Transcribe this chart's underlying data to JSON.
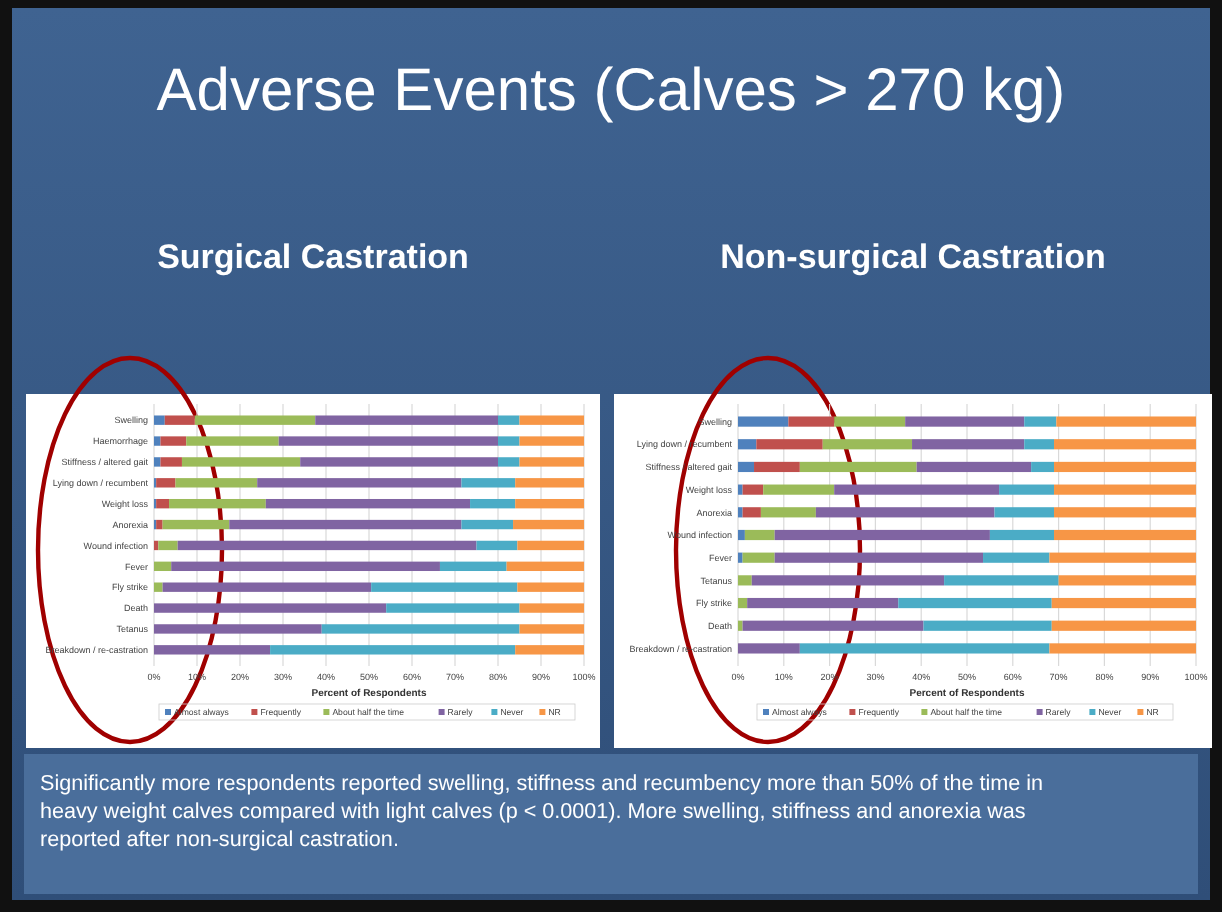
{
  "chart_data": [
    {
      "type": "bar",
      "title": "Adverse Events (Calves > 270 kg)",
      "subtitle": "Surgical Castration",
      "orientation": "horizontal",
      "stacked": true,
      "xlabel": "Percent of Respondents",
      "categories": [
        "Swelling",
        "Haemorrhage",
        "Stiffness / altered gait",
        "Lying down / recumbent",
        "Weight loss",
        "Anorexia",
        "Wound infection",
        "Fever",
        "Fly strike",
        "Death",
        "Tetanus",
        "Breakdown / re-castration"
      ],
      "series": [
        {
          "name": "Almost always",
          "color": "#4f81bd",
          "values": [
            2.5,
            1.5,
            1.5,
            0.5,
            0.5,
            0.5,
            0,
            0,
            0,
            0,
            0,
            0
          ]
        },
        {
          "name": "Frequently",
          "color": "#c0504d",
          "values": [
            7,
            6,
            5,
            4.5,
            3,
            1.5,
            1,
            0,
            0,
            0,
            0,
            0
          ]
        },
        {
          "name": "About half the time",
          "color": "#9bbb59",
          "values": [
            28,
            21.5,
            27.5,
            19,
            22.5,
            15.5,
            4.5,
            4,
            2,
            0,
            0,
            0
          ]
        },
        {
          "name": "Rarely",
          "color": "#8064a2",
          "values": [
            42.5,
            51,
            46,
            47.5,
            47.5,
            54,
            69.5,
            62.5,
            48.5,
            54,
            39,
            27
          ]
        },
        {
          "name": "Never",
          "color": "#4bacc6",
          "values": [
            5,
            5,
            5,
            12.5,
            10.5,
            12,
            9.5,
            15.5,
            34,
            31,
            46,
            57
          ]
        },
        {
          "name": "NR",
          "color": "#f79646",
          "values": [
            15,
            15,
            15,
            16,
            16,
            16.5,
            15.5,
            18,
            15.5,
            15,
            15,
            16
          ]
        }
      ],
      "xlim": [
        0,
        100
      ],
      "xticks": [
        {
          "value": 0,
          "label": "0%"
        },
        {
          "value": 10,
          "label": "10%"
        },
        {
          "value": 20,
          "label": "20%"
        },
        {
          "value": 30,
          "label": "30%"
        },
        {
          "value": 40,
          "label": "40%"
        },
        {
          "value": 50,
          "label": "50%"
        },
        {
          "value": 60,
          "label": "60%"
        },
        {
          "value": 70,
          "label": "70%"
        },
        {
          "value": 80,
          "label": "80%"
        },
        {
          "value": 90,
          "label": "90%"
        },
        {
          "value": 100,
          "label": "100%"
        }
      ],
      "grid": "x",
      "legend": "bottom"
    },
    {
      "type": "bar",
      "title": "Non-surgical Castration",
      "orientation": "horizontal",
      "stacked": true,
      "xlabel": "Percent of Respondents",
      "categories": [
        "Swelling",
        "Lying down / recumbent",
        "Stiffness / altered gait",
        "Weight loss",
        "Anorexia",
        "Wound infection",
        "Fever",
        "Tetanus",
        "Fly strike",
        "Death",
        "Breakdown / re-castration"
      ],
      "series": [
        {
          "name": "Almost always",
          "color": "#4f81bd",
          "values": [
            11,
            4,
            3.5,
            1,
            1,
            1.5,
            1,
            0,
            0,
            0,
            0
          ]
        },
        {
          "name": "Frequently",
          "color": "#c0504d",
          "values": [
            10,
            14.5,
            10,
            4.5,
            4,
            0,
            0,
            0,
            0,
            0,
            0
          ]
        },
        {
          "name": "About half the time",
          "color": "#9bbb59",
          "values": [
            15.5,
            19.5,
            25.5,
            15.5,
            12,
            6.5,
            7,
            3,
            2,
            1,
            0
          ]
        },
        {
          "name": "Rarely",
          "color": "#8064a2",
          "values": [
            26,
            24.5,
            25,
            36,
            39,
            47,
            45.5,
            42,
            33,
            39.5,
            13.5
          ]
        },
        {
          "name": "Never",
          "color": "#4bacc6",
          "values": [
            7,
            6.5,
            5,
            12,
            13,
            14,
            14.5,
            25,
            33.5,
            28,
            54.5
          ]
        },
        {
          "name": "NR",
          "color": "#f79646",
          "values": [
            30.5,
            31,
            31,
            31,
            31,
            31,
            32,
            30,
            31.5,
            31.5,
            32
          ]
        }
      ],
      "xlim": [
        0,
        100
      ],
      "xticks": [
        {
          "value": 0,
          "label": "0%"
        },
        {
          "value": 10,
          "label": "10%"
        },
        {
          "value": 20,
          "label": "20%"
        },
        {
          "value": 30,
          "label": "30%"
        },
        {
          "value": 40,
          "label": "40%"
        },
        {
          "value": 50,
          "label": "50%"
        },
        {
          "value": 60,
          "label": "60%"
        },
        {
          "value": 70,
          "label": "70%"
        },
        {
          "value": 80,
          "label": "80%"
        },
        {
          "value": 90,
          "label": "90%"
        },
        {
          "value": 100,
          "label": "100%"
        }
      ],
      "grid": "x",
      "legend": "bottom",
      "annotations": [
        "Significantly more respondents reported swelling, stiffness and recumbency more than 50% of the time in heavy weight calves compared with light calves (p < 0.0001). More swelling, stiffness and anorexia was reported after non-surgical castration."
      ]
    }
  ]
}
